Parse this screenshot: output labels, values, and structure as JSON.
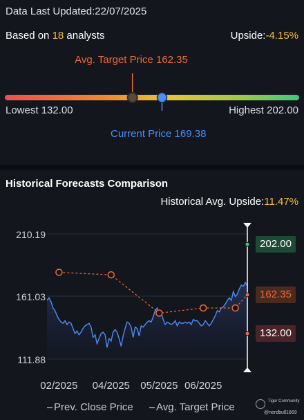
{
  "header": {
    "updated_label": "Data Last Updated:",
    "updated_date": "22/07/2025",
    "based_on_prefix": "Based on ",
    "analyst_count": "18",
    "based_on_suffix": " analysts",
    "upside_label": "Upside:",
    "upside_value": "-4.15%"
  },
  "target_bar": {
    "avg_label": "Avg. Target Price 162.35",
    "lowest_label": "Lowest 132.00",
    "highest_label": "Highest 202.00",
    "current_label": "Current Price 169.38",
    "low": 132.0,
    "high": 202.0,
    "avg": 162.35,
    "current": 169.38,
    "colors": {
      "avg": "#ef6a3a",
      "current": "#4f8df5"
    }
  },
  "historical": {
    "title": "Historical Forecasts Comparison",
    "upside_label": "Historical Avg. Upside:",
    "upside_value": "11.47%"
  },
  "chart_data": {
    "type": "line",
    "y_ticks": [
      "210.19",
      "161.03",
      "111.88"
    ],
    "ylim": [
      111.88,
      210.19
    ],
    "x_ticks": [
      "02/2025",
      "04/2025",
      "05/2025",
      "06/2025"
    ],
    "x_range": [
      0,
      100
    ],
    "x_tick_positions": [
      6,
      32,
      56,
      78
    ],
    "series": [
      {
        "name": "Prev. Close Price",
        "color": "#4f8df5",
        "x": [
          0,
          1,
          2,
          3,
          4,
          5,
          6,
          7,
          8,
          9,
          10,
          11,
          12,
          13,
          14,
          15,
          16,
          17,
          18,
          19,
          20,
          21,
          22,
          23,
          24,
          25,
          26,
          27,
          28,
          29,
          30,
          31,
          32,
          33,
          34,
          35,
          36,
          37,
          38,
          39,
          40,
          41,
          42,
          43,
          44,
          45,
          46,
          47,
          48,
          49,
          50,
          51,
          52,
          53,
          54,
          55,
          56,
          57,
          58,
          59,
          60,
          61,
          62,
          63,
          64,
          65,
          66,
          67,
          68,
          69,
          70,
          71,
          72,
          73,
          74,
          75,
          76,
          77,
          78,
          79,
          80,
          81,
          82,
          83,
          84,
          85,
          86,
          87,
          88,
          89,
          90,
          91,
          92,
          93,
          94,
          95,
          96,
          97,
          98,
          99,
          100
        ],
        "values": [
          158,
          160,
          157,
          152,
          150,
          146,
          143,
          141,
          140,
          142,
          139,
          141,
          140,
          136,
          132,
          134,
          131,
          133,
          136,
          138,
          139,
          140,
          137,
          129,
          131,
          124,
          128,
          132,
          133,
          131,
          121,
          128,
          126,
          133,
          135,
          133,
          128,
          122,
          130,
          136,
          141,
          140,
          137,
          129,
          137,
          136,
          130,
          138,
          137,
          139,
          141,
          142,
          141,
          145,
          150,
          152,
          146,
          148,
          143,
          139,
          141,
          140,
          139,
          140,
          142,
          138,
          141,
          140,
          140,
          141,
          140,
          141,
          139,
          143,
          142,
          142,
          140,
          138,
          139,
          142,
          140,
          138,
          140,
          143,
          146,
          150,
          149,
          152,
          153,
          155,
          158,
          160,
          158,
          165,
          161,
          163,
          167,
          170,
          169,
          172,
          169.38
        ],
        "area_fill": true
      },
      {
        "name": "Avg. Target Price",
        "color": "#ef6a3a",
        "x": [
          6,
          32,
          56,
          78,
          94,
          100
        ],
        "values": [
          180,
          178,
          148,
          152,
          152,
          162.35
        ]
      }
    ],
    "end_markers": [
      {
        "label": "202.00",
        "value": 202.0,
        "color": "#3ec97a",
        "bg": "#1e4a35"
      },
      {
        "label": "162.35",
        "value": 162.35,
        "color": "#ef6a3a",
        "bg": "#4a2a1f"
      },
      {
        "label": "132.00",
        "value": 132.0,
        "color": "#e06a5a",
        "bg": "#4a2426"
      }
    ]
  },
  "legend": {
    "close_label": "Prev. Close Price",
    "target_label": "Avg. Target Price"
  },
  "logo": {
    "brand": "Tiger Community",
    "user": "@nerdbull1669"
  }
}
